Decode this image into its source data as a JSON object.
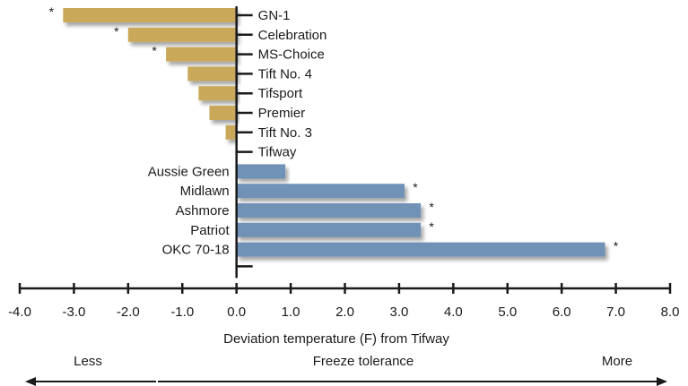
{
  "chart_data": {
    "type": "bar",
    "orientation": "horizontal",
    "xlabel": "Deviation temperature (F) from Tifway",
    "xlim": [
      -4.0,
      8.0
    ],
    "xticks": [
      "-4.0",
      "-3.0",
      "-2.0",
      "-1.0",
      "0.0",
      "1.0",
      "2.0",
      "3.0",
      "4.0",
      "5.0",
      "6.0",
      "7.0",
      "8.0"
    ],
    "colors": {
      "negative": "#c9a85a",
      "positive": "#6f92b6"
    },
    "significance_marker": "*",
    "bars": [
      {
        "category": "GN-1",
        "value": -3.2,
        "significant": true
      },
      {
        "category": "Celebration",
        "value": -2.0,
        "significant": true
      },
      {
        "category": "MS-Choice",
        "value": -1.3,
        "significant": true
      },
      {
        "category": "Tift No. 4",
        "value": -0.9,
        "significant": false
      },
      {
        "category": "Tifsport",
        "value": -0.7,
        "significant": false
      },
      {
        "category": "Premier",
        "value": -0.5,
        "significant": false
      },
      {
        "category": "Tift No. 3",
        "value": -0.2,
        "significant": false
      },
      {
        "category": "Tifway",
        "value": 0.0,
        "significant": false
      },
      {
        "category": "Aussie Green",
        "value": 0.9,
        "significant": false
      },
      {
        "category": "Midlawn",
        "value": 3.1,
        "significant": true
      },
      {
        "category": "Ashmore",
        "value": 3.4,
        "significant": true
      },
      {
        "category": "Patriot",
        "value": 3.4,
        "significant": true
      },
      {
        "category": "OKC 70-18",
        "value": 6.8,
        "significant": true
      }
    ],
    "scale_arrow": {
      "left": "Less",
      "center": "Freeze tolerance",
      "right": "More"
    }
  }
}
